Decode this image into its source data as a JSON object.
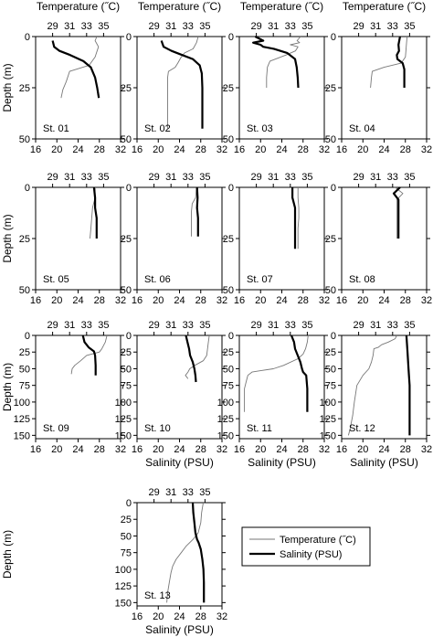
{
  "chart_data": {
    "type": "line",
    "top_axis_label": "Temperature (˝C)",
    "bottom_axis_label": "Salinity (PSU)",
    "y_axis_label": "Depth (m)",
    "temperature_axis": {
      "range": [
        27,
        37
      ],
      "ticks": [
        29,
        31,
        33,
        35
      ]
    },
    "salinity_axis": {
      "range": [
        16,
        32
      ],
      "ticks": [
        16,
        20,
        24,
        28,
        32
      ]
    },
    "legend": {
      "position": "bottom-right",
      "entries": [
        {
          "name": "Temperature (˝C)",
          "color": "#777777",
          "weight": "thin"
        },
        {
          "name": "Salinity (PSU)",
          "color": "#000000",
          "weight": "thick"
        }
      ]
    },
    "stations": [
      {
        "label": "St. 01",
        "depth_ticks": [
          0,
          25,
          50
        ],
        "depth_range": [
          0,
          50
        ],
        "temperature": [
          [
            34.2,
            0
          ],
          [
            34.0,
            2
          ],
          [
            34.4,
            5
          ],
          [
            34.0,
            10
          ],
          [
            33.3,
            14
          ],
          [
            31.0,
            17
          ],
          [
            30.6,
            22
          ],
          [
            30.2,
            26
          ],
          [
            30.0,
            30
          ]
        ],
        "salinity": [
          [
            19.2,
            2
          ],
          [
            19.5,
            5
          ],
          [
            20.5,
            7
          ],
          [
            22.5,
            9
          ],
          [
            25.0,
            12
          ],
          [
            26.4,
            15
          ],
          [
            27.2,
            20
          ],
          [
            27.6,
            25
          ],
          [
            27.9,
            30
          ]
        ]
      },
      {
        "label": "St. 02",
        "depth_ticks": [
          0,
          25,
          50
        ],
        "depth_range": [
          0,
          50
        ],
        "temperature": [
          [
            34.2,
            0
          ],
          [
            34.0,
            3
          ],
          [
            33.6,
            6
          ],
          [
            32.6,
            8
          ],
          [
            32.2,
            10
          ],
          [
            31.8,
            13
          ],
          [
            31.5,
            15
          ],
          [
            30.7,
            17
          ],
          [
            30.6,
            20
          ],
          [
            30.6,
            45
          ]
        ],
        "salinity": [
          [
            20.6,
            2
          ],
          [
            21.0,
            5
          ],
          [
            22.5,
            7
          ],
          [
            24.5,
            9
          ],
          [
            26.5,
            11
          ],
          [
            27.8,
            14
          ],
          [
            28.2,
            18
          ],
          [
            28.3,
            25
          ],
          [
            28.3,
            45
          ]
        ]
      },
      {
        "label": "St. 03",
        "depth_ticks": [
          0,
          25,
          50
        ],
        "depth_range": [
          0,
          50
        ],
        "temperature": [
          [
            34.2,
            0
          ],
          [
            33.8,
            2
          ],
          [
            34.1,
            3
          ],
          [
            33.0,
            4
          ],
          [
            33.9,
            5
          ],
          [
            33.6,
            7
          ],
          [
            32.5,
            9
          ],
          [
            30.6,
            12
          ],
          [
            30.3,
            15
          ],
          [
            30.2,
            20
          ],
          [
            30.2,
            25
          ]
        ],
        "salinity": [
          [
            19.0,
            0
          ],
          [
            20.5,
            2
          ],
          [
            18.6,
            3
          ],
          [
            20.0,
            4
          ],
          [
            20.5,
            5
          ],
          [
            22.5,
            6
          ],
          [
            25.0,
            8
          ],
          [
            26.5,
            11
          ],
          [
            26.8,
            15
          ],
          [
            27.0,
            20
          ],
          [
            27.1,
            25
          ]
        ]
      },
      {
        "label": "St. 04",
        "depth_ticks": [
          0,
          25,
          50
        ],
        "depth_range": [
          0,
          50
        ],
        "temperature": [
          [
            34.7,
            0
          ],
          [
            34.6,
            5
          ],
          [
            34.5,
            10
          ],
          [
            34.0,
            13
          ],
          [
            32.0,
            15
          ],
          [
            30.6,
            17
          ],
          [
            30.5,
            20
          ],
          [
            30.4,
            25
          ]
        ],
        "salinity": [
          [
            27.0,
            0
          ],
          [
            26.7,
            4
          ],
          [
            26.8,
            7
          ],
          [
            26.4,
            9
          ],
          [
            26.5,
            11
          ],
          [
            27.5,
            13
          ],
          [
            27.8,
            16
          ],
          [
            27.8,
            25
          ]
        ]
      },
      {
        "label": "St. 05",
        "depth_ticks": [
          0,
          25,
          50
        ],
        "depth_range": [
          0,
          50
        ],
        "temperature": [
          [
            34.0,
            0
          ],
          [
            34.0,
            5
          ],
          [
            33.7,
            10
          ],
          [
            33.6,
            15
          ],
          [
            33.5,
            20
          ],
          [
            33.4,
            25
          ]
        ],
        "salinity": [
          [
            27.0,
            0
          ],
          [
            27.2,
            5
          ],
          [
            27.2,
            10
          ],
          [
            27.5,
            15
          ],
          [
            27.5,
            20
          ],
          [
            27.5,
            25
          ]
        ]
      },
      {
        "label": "St. 06",
        "depth_ticks": [
          0,
          25,
          50
        ],
        "depth_range": [
          0,
          50
        ],
        "temperature": [
          [
            34.0,
            0
          ],
          [
            33.9,
            5
          ],
          [
            33.5,
            8
          ],
          [
            33.4,
            12
          ],
          [
            33.4,
            18
          ],
          [
            33.4,
            24
          ]
        ],
        "salinity": [
          [
            27.3,
            0
          ],
          [
            27.4,
            5
          ],
          [
            27.3,
            10
          ],
          [
            27.5,
            15
          ],
          [
            27.5,
            20
          ],
          [
            27.5,
            24
          ]
        ]
      },
      {
        "label": "St. 07",
        "depth_ticks": [
          0,
          25,
          50
        ],
        "depth_range": [
          0,
          50
        ],
        "temperature": [
          [
            33.9,
            0
          ],
          [
            33.9,
            5
          ],
          [
            34.0,
            10
          ],
          [
            34.0,
            15
          ],
          [
            33.9,
            20
          ],
          [
            33.9,
            25
          ],
          [
            33.9,
            30
          ]
        ],
        "salinity": [
          [
            26.0,
            0
          ],
          [
            26.0,
            5
          ],
          [
            26.5,
            10
          ],
          [
            26.5,
            15
          ],
          [
            26.5,
            20
          ],
          [
            26.5,
            25
          ],
          [
            26.5,
            30
          ]
        ]
      },
      {
        "label": "St. 08",
        "depth_ticks": [
          0,
          25,
          50
        ],
        "depth_range": [
          0,
          50
        ],
        "temperature": [
          [
            33.3,
            0
          ],
          [
            34.2,
            3
          ],
          [
            33.5,
            6
          ],
          [
            33.5,
            10
          ],
          [
            33.5,
            15
          ],
          [
            33.5,
            20
          ],
          [
            33.5,
            25
          ]
        ],
        "salinity": [
          [
            27.0,
            0
          ],
          [
            25.8,
            3
          ],
          [
            26.7,
            6
          ],
          [
            26.7,
            10
          ],
          [
            26.7,
            15
          ],
          [
            26.7,
            20
          ],
          [
            26.7,
            25
          ]
        ]
      },
      {
        "label": "St. 09",
        "depth_ticks": [
          0,
          25,
          50,
          75,
          100,
          125,
          150
        ],
        "depth_range": [
          0,
          155
        ],
        "temperature": [
          [
            35.4,
            0
          ],
          [
            35.2,
            10
          ],
          [
            34.8,
            20
          ],
          [
            34.5,
            25
          ],
          [
            33.0,
            30
          ],
          [
            32.3,
            38
          ],
          [
            31.6,
            45
          ],
          [
            31.3,
            50
          ],
          [
            31.2,
            58
          ]
        ],
        "salinity": [
          [
            24.9,
            0
          ],
          [
            25.2,
            10
          ],
          [
            26.0,
            18
          ],
          [
            27.0,
            24
          ],
          [
            27.2,
            30
          ],
          [
            27.3,
            45
          ],
          [
            27.3,
            60
          ]
        ]
      },
      {
        "label": "St. 10",
        "depth_ticks": [
          0,
          25,
          50,
          75,
          100,
          125,
          150
        ],
        "depth_range": [
          0,
          155
        ],
        "temperature": [
          [
            35.5,
            0
          ],
          [
            35.4,
            10
          ],
          [
            35.3,
            20
          ],
          [
            35.2,
            30
          ],
          [
            34.8,
            38
          ],
          [
            33.8,
            45
          ],
          [
            33.2,
            50
          ],
          [
            33.0,
            55
          ],
          [
            32.7,
            60
          ],
          [
            33.0,
            65
          ]
        ],
        "salinity": [
          [
            25.2,
            0
          ],
          [
            25.5,
            10
          ],
          [
            25.8,
            20
          ],
          [
            26.0,
            30
          ],
          [
            26.5,
            40
          ],
          [
            26.8,
            50
          ],
          [
            27.0,
            60
          ],
          [
            27.1,
            70
          ]
        ]
      },
      {
        "label": "St. 11",
        "depth_ticks": [
          0,
          25,
          50,
          75,
          100,
          125,
          150
        ],
        "depth_range": [
          0,
          155
        ],
        "temperature": [
          [
            35.1,
            0
          ],
          [
            35.0,
            10
          ],
          [
            34.8,
            20
          ],
          [
            34.5,
            28
          ],
          [
            33.9,
            35
          ],
          [
            32.2,
            45
          ],
          [
            31.0,
            50
          ],
          [
            29.5,
            53
          ],
          [
            28.5,
            55
          ],
          [
            28.0,
            60
          ],
          [
            27.8,
            70
          ],
          [
            27.6,
            80
          ],
          [
            27.6,
            100
          ],
          [
            27.6,
            115
          ]
        ],
        "salinity": [
          [
            25.8,
            0
          ],
          [
            26.3,
            10
          ],
          [
            26.5,
            20
          ],
          [
            27.0,
            30
          ],
          [
            27.5,
            40
          ],
          [
            27.8,
            50
          ],
          [
            28.0,
            55
          ],
          [
            28.6,
            60
          ],
          [
            28.8,
            80
          ],
          [
            28.8,
            100
          ],
          [
            28.8,
            115
          ]
        ]
      },
      {
        "label": "St. 12",
        "depth_ticks": [
          0,
          25,
          50,
          75,
          100,
          125,
          150
        ],
        "depth_range": [
          0,
          155
        ],
        "temperature": [
          [
            33.5,
            0
          ],
          [
            33.3,
            5
          ],
          [
            32.5,
            10
          ],
          [
            31.7,
            14
          ],
          [
            31.3,
            18
          ],
          [
            30.8,
            20
          ],
          [
            30.7,
            30
          ],
          [
            30.5,
            40
          ],
          [
            30.2,
            50
          ],
          [
            29.5,
            60
          ],
          [
            28.8,
            75
          ],
          [
            28.5,
            100
          ],
          [
            28.3,
            120
          ],
          [
            28.0,
            140
          ],
          [
            27.8,
            150
          ]
        ],
        "salinity": [
          [
            28.2,
            0
          ],
          [
            28.4,
            25
          ],
          [
            28.6,
            50
          ],
          [
            28.8,
            75
          ],
          [
            28.8,
            100
          ],
          [
            28.8,
            125
          ],
          [
            28.8,
            150
          ]
        ]
      },
      {
        "label": "St. 13",
        "depth_ticks": [
          0,
          25,
          50,
          75,
          100,
          125,
          150
        ],
        "depth_range": [
          0,
          155
        ],
        "temperature": [
          [
            34.8,
            0
          ],
          [
            34.6,
            15
          ],
          [
            34.5,
            30
          ],
          [
            34.2,
            45
          ],
          [
            33.6,
            55
          ],
          [
            32.8,
            65
          ],
          [
            32.2,
            75
          ],
          [
            31.6,
            85
          ],
          [
            31.2,
            95
          ],
          [
            31.0,
            105
          ],
          [
            30.8,
            120
          ],
          [
            30.6,
            135
          ],
          [
            30.5,
            150
          ]
        ],
        "salinity": [
          [
            26.5,
            0
          ],
          [
            26.6,
            15
          ],
          [
            26.8,
            30
          ],
          [
            27.0,
            45
          ],
          [
            27.3,
            55
          ],
          [
            27.6,
            60
          ],
          [
            28.0,
            70
          ],
          [
            28.3,
            85
          ],
          [
            28.5,
            100
          ],
          [
            28.6,
            120
          ],
          [
            28.6,
            150
          ]
        ]
      }
    ]
  }
}
